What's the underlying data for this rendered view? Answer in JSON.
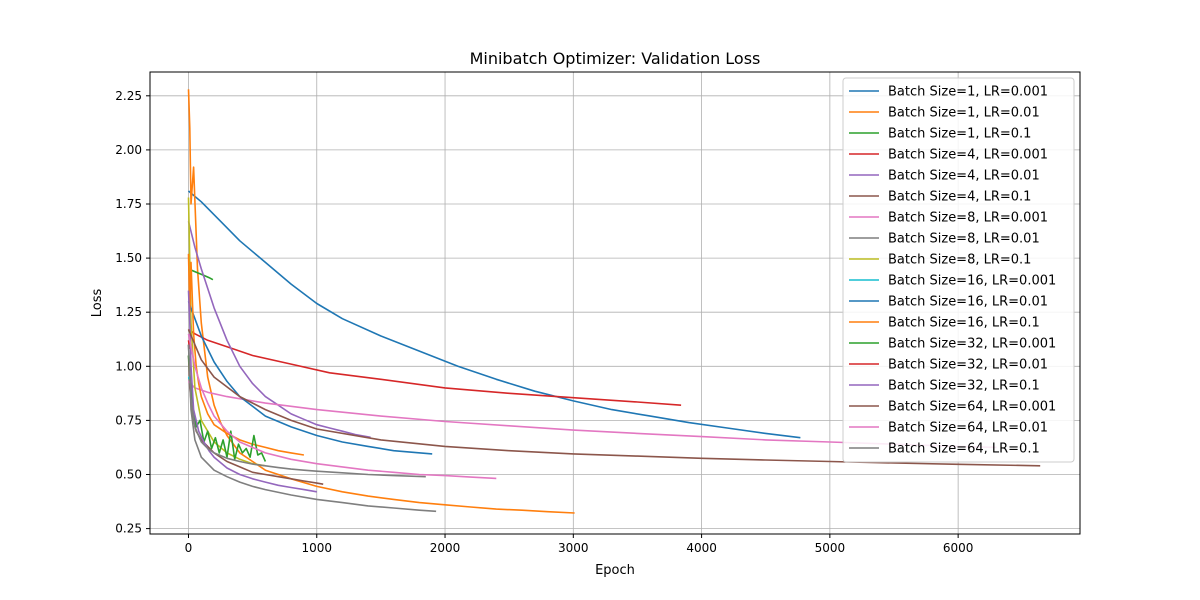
{
  "chart_data": {
    "type": "line",
    "title": "Minibatch Optimizer: Validation Loss",
    "xlabel": "Epoch",
    "ylabel": "Loss",
    "xlim": [
      -300,
      6950
    ],
    "ylim": [
      0.225,
      2.36
    ],
    "xticks": [
      0,
      1000,
      2000,
      3000,
      4000,
      5000,
      6000
    ],
    "yticks": [
      0.25,
      0.5,
      0.75,
      1.0,
      1.25,
      1.5,
      1.75,
      2.0,
      2.25
    ],
    "xtick_labels": [
      "0",
      "1000",
      "2000",
      "3000",
      "4000",
      "5000",
      "6000"
    ],
    "ytick_labels": [
      "0.25",
      "0.50",
      "0.75",
      "1.00",
      "1.25",
      "1.50",
      "1.75",
      "2.00",
      "2.25"
    ],
    "grid": true,
    "legend_position": "upper-right",
    "series": [
      {
        "name": "Batch Size=1, LR=0.001",
        "color": "#1f77b4",
        "x": [
          0,
          100,
          250,
          400,
          600,
          800,
          1000,
          1200,
          1500,
          1800,
          2100,
          2400,
          2700,
          3000,
          3300,
          3600,
          3900,
          4200,
          4500,
          4770
        ],
        "y": [
          1.81,
          1.76,
          1.67,
          1.58,
          1.48,
          1.38,
          1.29,
          1.22,
          1.14,
          1.07,
          1.0,
          0.94,
          0.885,
          0.84,
          0.8,
          0.77,
          0.74,
          0.715,
          0.69,
          0.67
        ]
      },
      {
        "name": "Batch Size=1, LR=0.01",
        "color": "#ff7f0e",
        "x": [
          0,
          10,
          20,
          40,
          70,
          100,
          150,
          200,
          250,
          300,
          400,
          500,
          600,
          800,
          1000,
          1200,
          1400,
          1600,
          1800,
          2000,
          2200,
          2400,
          2600,
          2800,
          3010
        ],
        "y": [
          2.28,
          2.1,
          1.75,
          1.92,
          1.45,
          1.2,
          0.95,
          0.82,
          0.74,
          0.68,
          0.6,
          0.56,
          0.52,
          0.48,
          0.445,
          0.42,
          0.4,
          0.385,
          0.37,
          0.36,
          0.35,
          0.34,
          0.335,
          0.328,
          0.322
        ]
      },
      {
        "name": "Batch Size=1, LR=0.1",
        "color": "#2ca02c",
        "x": [
          0,
          40,
          80,
          120,
          160,
          190
        ],
        "y": [
          1.45,
          1.44,
          1.43,
          1.42,
          1.41,
          1.4
        ]
      },
      {
        "name": "Batch Size=4, LR=0.001",
        "color": "#d62728",
        "x": [
          0,
          50,
          150,
          300,
          500,
          800,
          1100,
          1500,
          2000,
          2500,
          3000,
          3500,
          3840
        ],
        "y": [
          1.17,
          1.15,
          1.12,
          1.09,
          1.05,
          1.01,
          0.97,
          0.94,
          0.9,
          0.875,
          0.855,
          0.835,
          0.82
        ]
      },
      {
        "name": "Batch Size=4, LR=0.01",
        "color": "#9467bd",
        "x": [
          0,
          50,
          100,
          200,
          300,
          400,
          500,
          600,
          700,
          800,
          900,
          1000,
          1100,
          1200,
          1300,
          1420
        ],
        "y": [
          1.67,
          1.55,
          1.45,
          1.27,
          1.12,
          1.0,
          0.92,
          0.86,
          0.82,
          0.78,
          0.755,
          0.73,
          0.715,
          0.7,
          0.685,
          0.672
        ]
      },
      {
        "name": "Batch Size=4, LR=0.1",
        "color": "#8c564b",
        "x": [
          0,
          10,
          30,
          60,
          100,
          150,
          200,
          300,
          400,
          500,
          600,
          700,
          800,
          900,
          1000,
          1050
        ],
        "y": [
          1.05,
          0.9,
          0.78,
          0.7,
          0.66,
          0.63,
          0.6,
          0.56,
          0.535,
          0.51,
          0.5,
          0.49,
          0.48,
          0.47,
          0.46,
          0.455
        ]
      },
      {
        "name": "Batch Size=8, LR=0.001",
        "color": "#e377c2",
        "x": [
          0,
          50,
          150,
          300,
          600,
          1000,
          1500,
          2000,
          2500,
          3000,
          3500,
          4000,
          4500,
          5000,
          5500,
          6000,
          6300
        ],
        "y": [
          0.93,
          0.9,
          0.88,
          0.86,
          0.83,
          0.8,
          0.77,
          0.745,
          0.725,
          0.705,
          0.69,
          0.675,
          0.66,
          0.65,
          0.64,
          0.63,
          0.625
        ]
      },
      {
        "name": "Batch Size=8, LR=0.01",
        "color": "#7f7f7f",
        "x": [
          0,
          20,
          50,
          100,
          200,
          300,
          400,
          500,
          600,
          800,
          1000,
          1200,
          1400,
          1600,
          1800,
          1930
        ],
        "y": [
          1.1,
          0.8,
          0.66,
          0.58,
          0.52,
          0.49,
          0.465,
          0.445,
          0.43,
          0.405,
          0.385,
          0.37,
          0.355,
          0.345,
          0.335,
          0.33
        ]
      },
      {
        "name": "Batch Size=8, LR=0.1",
        "color": "#bcbd22",
        "x": [
          0,
          20,
          50,
          100,
          200,
          300,
          400,
          500,
          600
        ],
        "y": [
          1.78,
          1.2,
          0.9,
          0.75,
          0.65,
          0.6,
          0.57,
          0.55,
          0.54
        ]
      },
      {
        "name": "Batch Size=16, LR=0.001",
        "color": "#17becf",
        "x": [
          0,
          2,
          4
        ],
        "y": [
          0.95,
          0.95,
          0.94
        ]
      },
      {
        "name": "Batch Size=16, LR=0.01",
        "color": "#1f77b4",
        "x": [
          0,
          50,
          100,
          200,
          300,
          400,
          600,
          800,
          1000,
          1200,
          1400,
          1600,
          1900
        ],
        "y": [
          1.3,
          1.22,
          1.14,
          1.02,
          0.93,
          0.86,
          0.77,
          0.72,
          0.68,
          0.65,
          0.63,
          0.61,
          0.595
        ]
      },
      {
        "name": "Batch Size=16, LR=0.1",
        "color": "#ff7f0e",
        "x": [
          0,
          10,
          20,
          40,
          60,
          80,
          100,
          150,
          200,
          300,
          400,
          500,
          600,
          700,
          800,
          900
        ],
        "y": [
          1.52,
          1.25,
          1.48,
          1.15,
          1.0,
          0.92,
          0.86,
          0.78,
          0.73,
          0.69,
          0.66,
          0.64,
          0.625,
          0.61,
          0.6,
          0.59
        ]
      },
      {
        "name": "Batch Size=32, LR=0.001",
        "color": "#2ca02c",
        "x": [
          0,
          30,
          60,
          90,
          120,
          150,
          180,
          210,
          240,
          270,
          300,
          330,
          360,
          390,
          420,
          450,
          480,
          510,
          540,
          570,
          600
        ],
        "y": [
          1.05,
          0.82,
          0.72,
          0.75,
          0.65,
          0.7,
          0.62,
          0.67,
          0.6,
          0.66,
          0.58,
          0.7,
          0.57,
          0.64,
          0.6,
          0.62,
          0.58,
          0.68,
          0.59,
          0.6,
          0.56
        ]
      },
      {
        "name": "Batch Size=32, LR=0.01",
        "color": "#d62728",
        "x": [
          0,
          5,
          10
        ],
        "y": [
          1.12,
          1.1,
          1.08
        ]
      },
      {
        "name": "Batch Size=32, LR=0.1",
        "color": "#9467bd",
        "x": [
          0,
          10,
          20,
          40,
          80,
          120,
          160,
          200,
          300,
          400,
          500,
          600,
          700,
          800,
          900,
          1000
        ],
        "y": [
          1.35,
          1.2,
          1.0,
          0.8,
          0.7,
          0.65,
          0.61,
          0.58,
          0.53,
          0.5,
          0.48,
          0.465,
          0.45,
          0.44,
          0.43,
          0.42
        ]
      },
      {
        "name": "Batch Size=64, LR=0.001",
        "color": "#8c564b",
        "x": [
          0,
          50,
          100,
          200,
          400,
          600,
          800,
          1000,
          1500,
          2000,
          2500,
          3000,
          3500,
          4000,
          4500,
          5000,
          5500,
          6000,
          6640
        ],
        "y": [
          1.17,
          1.1,
          1.03,
          0.95,
          0.86,
          0.8,
          0.75,
          0.71,
          0.66,
          0.63,
          0.61,
          0.595,
          0.585,
          0.575,
          0.567,
          0.56,
          0.553,
          0.547,
          0.54
        ]
      },
      {
        "name": "Batch Size=64, LR=0.01",
        "color": "#e377c2",
        "x": [
          0,
          50,
          100,
          150,
          200,
          300,
          400,
          600,
          800,
          1000,
          1200,
          1400,
          1600,
          1800,
          2000,
          2200,
          2400
        ],
        "y": [
          1.15,
          1.0,
          0.9,
          0.83,
          0.77,
          0.7,
          0.65,
          0.6,
          0.57,
          0.55,
          0.535,
          0.52,
          0.51,
          0.5,
          0.495,
          0.488,
          0.482
        ]
      },
      {
        "name": "Batch Size=64, LR=0.1",
        "color": "#7f7f7f",
        "x": [
          0,
          20,
          50,
          100,
          150,
          200,
          300,
          400,
          500,
          600,
          700,
          800,
          900,
          1000,
          1200,
          1400,
          1600,
          1850
        ],
        "y": [
          1.1,
          0.85,
          0.72,
          0.65,
          0.62,
          0.6,
          0.575,
          0.56,
          0.548,
          0.54,
          0.532,
          0.525,
          0.52,
          0.515,
          0.508,
          0.5,
          0.495,
          0.49
        ]
      }
    ]
  }
}
